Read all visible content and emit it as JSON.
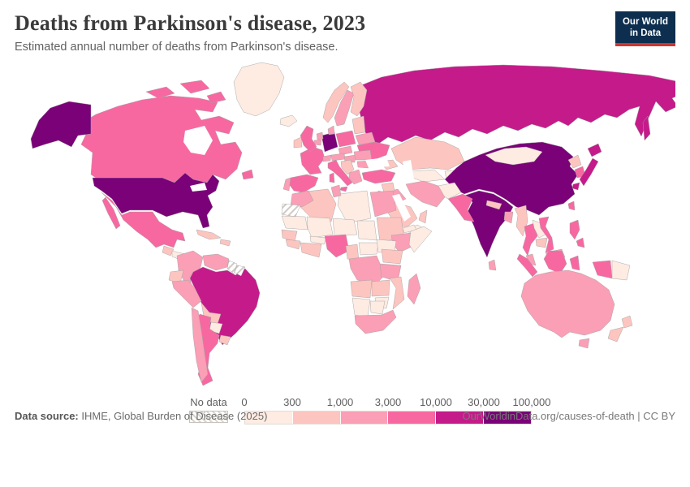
{
  "header": {
    "title": "Deaths from Parkinson's disease, 2023",
    "subtitle": "Estimated annual number of deaths from Parkinson's disease."
  },
  "logo": {
    "line1": "Our World",
    "line2": "in Data",
    "bg_color": "#0d2e4e",
    "accent_color": "#d0342f"
  },
  "legend": {
    "no_data_label": "No data",
    "tick_labels": [
      "0",
      "300",
      "1,000",
      "3,000",
      "10,000",
      "30,000",
      "100,000"
    ]
  },
  "footer": {
    "source_label": "Data source:",
    "source_text": " IHME, Global Burden of Disease (2025)",
    "link_text": "OurWorldinData.org/causes-of-death | CC BY"
  },
  "chart_data": {
    "type": "choropleth",
    "title": "Deaths from Parkinson's disease, 2023",
    "unit": "deaths",
    "legend_position": "bottom",
    "bins": [
      {
        "range": "0–300",
        "color": "#feebe2"
      },
      {
        "range": "300–1,000",
        "color": "#fcc5c0"
      },
      {
        "range": "1,000–3,000",
        "color": "#fa9fb5"
      },
      {
        "range": "3,000–10,000",
        "color": "#f768a1"
      },
      {
        "range": "10,000–30,000",
        "color": "#c51b8a"
      },
      {
        "range": "30,000–100,000",
        "color": "#7a0177"
      }
    ],
    "no_data_countries": [
      "western-sahara",
      "guyana",
      "suriname"
    ],
    "countries": {
      "russia": 4,
      "kazakhstan": 1,
      "uzbekistan-turkmenistan": 0,
      "kyrgyzstan-tajikistan": 0,
      "china": 5,
      "mongolia": 0,
      "india": 5,
      "pakistan": 3,
      "afghanistan": 0,
      "nepal": 1,
      "bangladesh": 2,
      "myanmar": 1,
      "thailand": 3,
      "laos": 0,
      "cambodia": 1,
      "vietnam": 3,
      "malaysia": 2,
      "sri-lanka": 2,
      "north-korea": 1,
      "south-korea": 3,
      "japan": 4,
      "taiwan": 3,
      "philippines": 3,
      "indonesia": 3,
      "papua-new-guinea": 0,
      "australia": 2,
      "new-zealand": 1,
      "iran": 2,
      "iraq": 2,
      "syria": 1,
      "saudi-arabia": 1,
      "yemen": 0,
      "oman": 1,
      "israel-jordan": 1,
      "turkey": 3,
      "caucasus": 1,
      "norway": 1,
      "sweden": 2,
      "finland": 1,
      "baltic-states": 1,
      "belarus": 2,
      "ukraine": 3,
      "poland": 3,
      "germany": 5,
      "denmark": 2,
      "netherlands": 2,
      "belgium": 2,
      "france": 3,
      "spain": 3,
      "portugal": 2,
      "switzerland": 2,
      "czechia-slovakia": 2,
      "austria": 2,
      "hungary": 2,
      "italy": 3,
      "balkans": 1,
      "romania": 2,
      "bulgaria": 2,
      "greece": 2,
      "united-kingdom": 3,
      "ireland": 1,
      "iceland": 0,
      "algeria": 1,
      "libya": 0,
      "egypt": 2,
      "morocco": 2,
      "tunisia": 2,
      "mauritania": 0,
      "mali": 0,
      "niger": 0,
      "chad": 0,
      "sudan": 1,
      "eritrea": 0,
      "ethiopia": 2,
      "somalia": 0,
      "senegal": 1,
      "guinea": 1,
      "burkina-faso": 0,
      "ivory-coast-ghana": 1,
      "nigeria": 3,
      "cameroon": 1,
      "central-african-republic": 0,
      "south-sudan": 0,
      "dr-congo": 2,
      "uganda-kenya": 1,
      "tanzania": 2,
      "angola": 1,
      "zambia": 1,
      "mozambique": 1,
      "zimbabwe": 0,
      "namibia": 0,
      "botswana": 0,
      "south-africa": 2,
      "madagascar": 2,
      "greenland": 0,
      "canada": 3,
      "united-states": 5,
      "mexico": 3,
      "guatemala": 1,
      "honduras": 0,
      "nicaragua": 1,
      "costa-rica-panama": 2,
      "cuba": 1,
      "hispaniola": 1,
      "colombia": 2,
      "venezuela": 2,
      "ecuador": 1,
      "brazil": 4,
      "peru": 2,
      "bolivia": 1,
      "paraguay": 0,
      "argentina": 3,
      "chile": 2,
      "uruguay": 1
    }
  }
}
